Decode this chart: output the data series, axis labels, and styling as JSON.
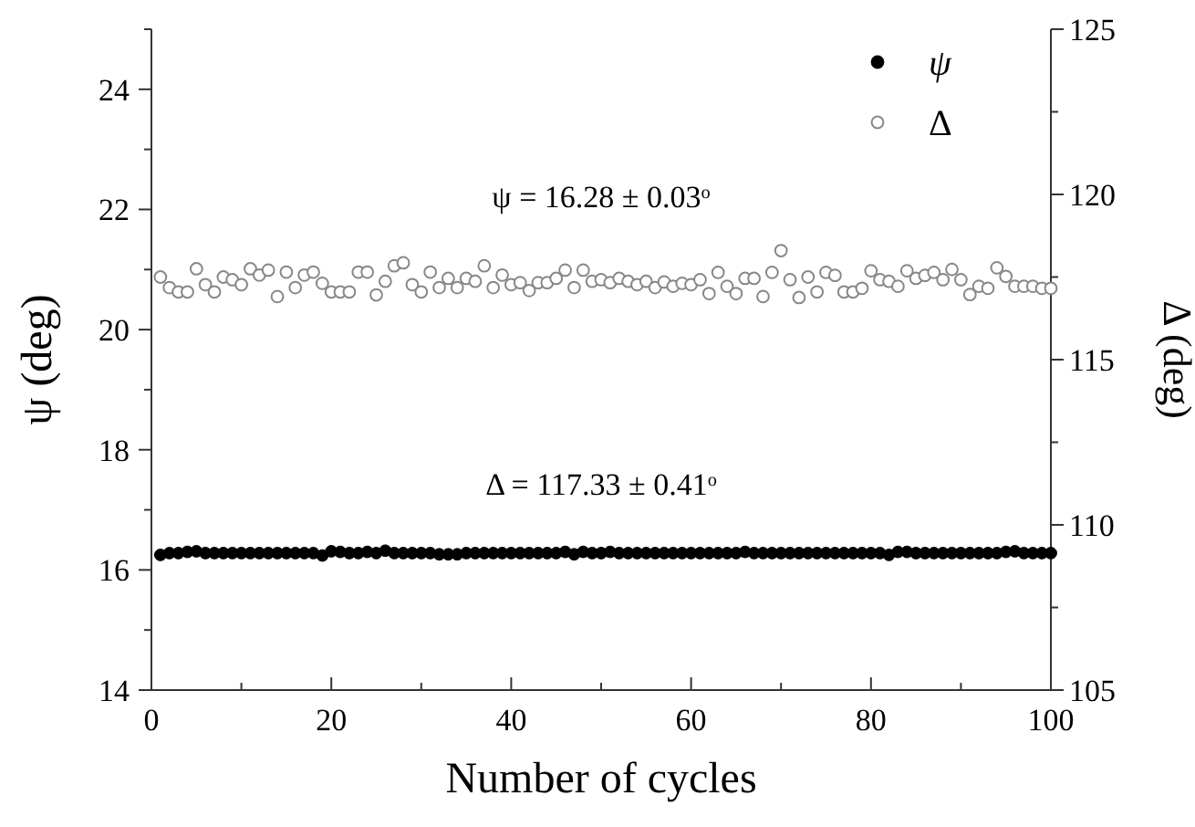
{
  "chart_data": {
    "type": "scatter",
    "xlabel": "Number of cycles",
    "ylabel": "ψ (deg)",
    "y2label": "Δ (deg)",
    "x": [
      1,
      2,
      3,
      4,
      5,
      6,
      7,
      8,
      9,
      10,
      11,
      12,
      13,
      14,
      15,
      16,
      17,
      18,
      19,
      20,
      21,
      22,
      23,
      24,
      25,
      26,
      27,
      28,
      29,
      30,
      31,
      32,
      33,
      34,
      35,
      36,
      37,
      38,
      39,
      40,
      41,
      42,
      43,
      44,
      45,
      46,
      47,
      48,
      49,
      50,
      51,
      52,
      53,
      54,
      55,
      56,
      57,
      58,
      59,
      60,
      61,
      62,
      63,
      64,
      65,
      66,
      67,
      68,
      69,
      70,
      71,
      72,
      73,
      74,
      75,
      76,
      77,
      78,
      79,
      80,
      81,
      82,
      83,
      84,
      85,
      86,
      87,
      88,
      89,
      90,
      91,
      92,
      93,
      94,
      95,
      96,
      97,
      98,
      99,
      100
    ],
    "xlim": [
      0,
      100
    ],
    "xticks": [
      0,
      {
        "value": 10,
        "label": null
      },
      20,
      {
        "value": 30,
        "label": null
      },
      40,
      {
        "value": 50,
        "label": null
      },
      60,
      {
        "value": 70,
        "label": null
      },
      80,
      {
        "value": 90,
        "label": null
      },
      100
    ],
    "ylim": [
      14,
      25
    ],
    "yticks": [
      14,
      {
        "value": 15,
        "label": null
      },
      16,
      {
        "value": 17,
        "label": null
      },
      18,
      {
        "value": 19,
        "label": null
      },
      20,
      {
        "value": 21,
        "label": null
      },
      22,
      {
        "value": 23,
        "label": null
      },
      24,
      {
        "value": 25,
        "label": null
      }
    ],
    "y2lim": [
      105,
      125
    ],
    "y2ticks": [
      105,
      {
        "value": 107.5,
        "label": null
      },
      110,
      {
        "value": 112.5,
        "label": null
      },
      115,
      {
        "value": 117.5,
        "label": null
      },
      120,
      {
        "value": 122.5,
        "label": null
      },
      125
    ],
    "series": [
      {
        "name": "ψ",
        "color": "#000000",
        "values": [
          16.25,
          16.28,
          16.28,
          16.3,
          16.31,
          16.28,
          16.28,
          16.28,
          16.28,
          16.28,
          16.28,
          16.28,
          16.28,
          16.28,
          16.28,
          16.28,
          16.28,
          16.28,
          16.24,
          16.31,
          16.3,
          16.28,
          16.28,
          16.3,
          16.28,
          16.32,
          16.28,
          16.28,
          16.28,
          16.28,
          16.28,
          16.26,
          16.26,
          16.26,
          16.28,
          16.28,
          16.28,
          16.28,
          16.28,
          16.28,
          16.28,
          16.28,
          16.28,
          16.28,
          16.28,
          16.3,
          16.26,
          16.3,
          16.28,
          16.28,
          16.3,
          16.28,
          16.28,
          16.28,
          16.28,
          16.28,
          16.28,
          16.28,
          16.28,
          16.28,
          16.28,
          16.28,
          16.28,
          16.28,
          16.28,
          16.3,
          16.28,
          16.28,
          16.28,
          16.28,
          16.28,
          16.28,
          16.28,
          16.28,
          16.28,
          16.28,
          16.28,
          16.28,
          16.28,
          16.28,
          16.28,
          16.25,
          16.3,
          16.3,
          16.28,
          16.28,
          16.28,
          16.28,
          16.28,
          16.28,
          16.28,
          16.28,
          16.28,
          16.28,
          16.3,
          16.31,
          16.28,
          16.28,
          16.28,
          16.28
        ]
      },
      {
        "name": "Δ",
        "color": "#888888",
        "axis": "y2",
        "values": [
          117.5,
          117.18,
          117.05,
          117.05,
          117.75,
          117.27,
          117.05,
          117.5,
          117.42,
          117.27,
          117.75,
          117.56,
          117.71,
          116.91,
          117.65,
          117.18,
          117.56,
          117.65,
          117.31,
          117.05,
          117.05,
          117.05,
          117.65,
          117.65,
          116.96,
          117.37,
          117.84,
          117.93,
          117.27,
          117.05,
          117.65,
          117.18,
          117.46,
          117.18,
          117.46,
          117.37,
          117.84,
          117.18,
          117.56,
          117.27,
          117.33,
          117.09,
          117.33,
          117.33,
          117.46,
          117.71,
          117.18,
          117.71,
          117.37,
          117.42,
          117.33,
          117.46,
          117.37,
          117.27,
          117.37,
          117.18,
          117.35,
          117.22,
          117.31,
          117.27,
          117.42,
          117.0,
          117.64,
          117.22,
          117.0,
          117.46,
          117.46,
          116.91,
          117.64,
          118.3,
          117.42,
          116.88,
          117.5,
          117.05,
          117.64,
          117.55,
          117.05,
          117.05,
          117.16,
          117.69,
          117.42,
          117.37,
          117.22,
          117.69,
          117.46,
          117.55,
          117.64,
          117.42,
          117.73,
          117.42,
          116.97,
          117.22,
          117.16,
          117.78,
          117.52,
          117.22,
          117.22,
          117.22,
          117.16,
          117.16
        ]
      }
    ],
    "marker": "circle",
    "legend": "top right",
    "annotations": [
      "ψ = 16.28 ± 0.03$^{o}$",
      "Δ = 117.33 ± 0.41$^{o}$"
    ]
  }
}
